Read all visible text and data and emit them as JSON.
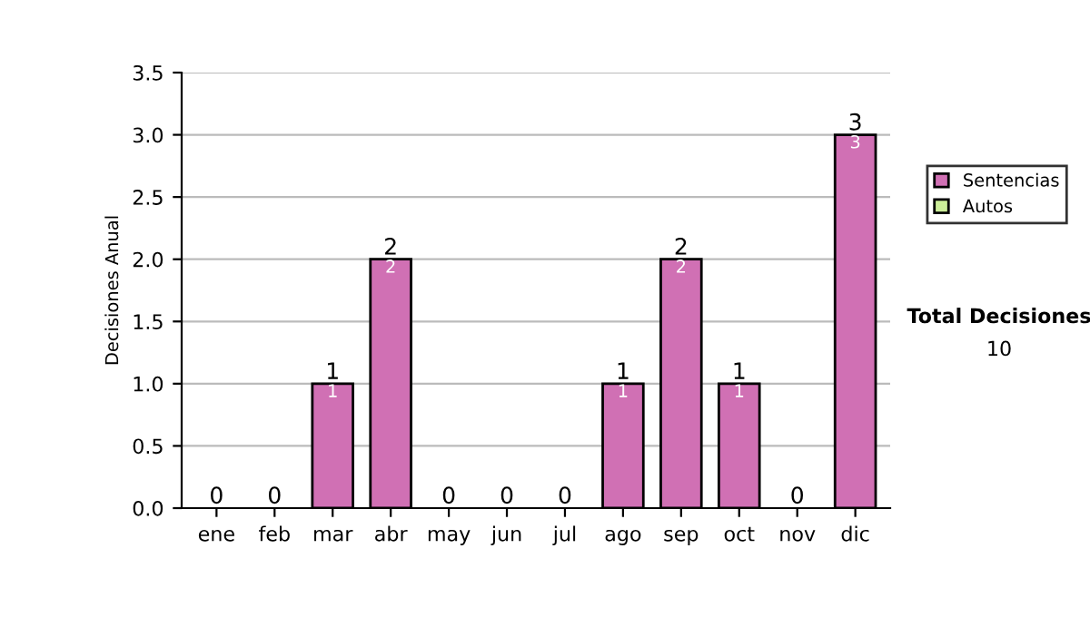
{
  "chart_data": {
    "type": "bar",
    "stacked": true,
    "ylabel": "Decisiones Anual",
    "categories": [
      "ene",
      "feb",
      "mar",
      "abr",
      "may",
      "jun",
      "jul",
      "ago",
      "sep",
      "oct",
      "nov",
      "dic"
    ],
    "series": [
      {
        "name": "Sentencias",
        "color": "#d070b4",
        "values": [
          0,
          0,
          1,
          2,
          0,
          0,
          0,
          1,
          2,
          1,
          0,
          3
        ],
        "value_labels": [
          null,
          null,
          "1",
          "2",
          null,
          null,
          null,
          "1",
          "2",
          "1",
          null,
          "3"
        ]
      },
      {
        "name": "Autos",
        "color": "#ccee99",
        "values": [
          null,
          null,
          null,
          null,
          null,
          null,
          null,
          null,
          null,
          null,
          null,
          null
        ]
      }
    ],
    "totals": [
      "0",
      "0",
      "1",
      "2",
      "0",
      "0",
      "0",
      "1",
      "2",
      "1",
      "0",
      "3"
    ],
    "ylim": [
      0,
      3.5
    ],
    "yticks": [
      "0.0",
      "0.5",
      "1.0",
      "1.5",
      "2.0",
      "2.5",
      "3.0",
      "3.5"
    ],
    "grid": "y",
    "legend": "right",
    "annotations": [
      "Total Decisiones",
      "10"
    ]
  }
}
